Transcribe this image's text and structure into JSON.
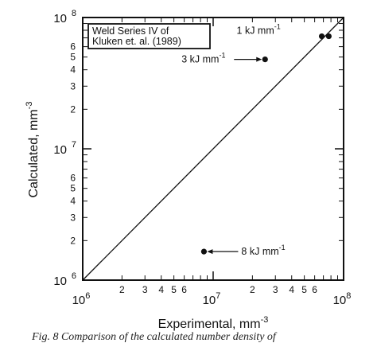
{
  "chart_data": {
    "type": "scatter",
    "title": "",
    "xlabel": "Experimental, mm",
    "xlabel_exp": "-3",
    "ylabel": "Calculated, mm",
    "ylabel_exp": "-3",
    "xscale": "log",
    "yscale": "log",
    "xlim": [
      1000000,
      100000000
    ],
    "ylim": [
      1000000,
      100000000
    ],
    "major_ticks": [
      {
        "value": 1000000,
        "base": "10",
        "exp": "6"
      },
      {
        "value": 10000000,
        "base": "10",
        "exp": "7"
      },
      {
        "value": 100000000,
        "base": "10",
        "exp": "8"
      }
    ],
    "x_minor_labels": [
      "2",
      "3",
      "4",
      "5",
      "6",
      "2",
      "3",
      "4",
      "5",
      "6"
    ],
    "y_minor_labels": [
      "2",
      "3",
      "4",
      "5",
      "6",
      "2",
      "3",
      "4",
      "5",
      "6"
    ],
    "legend_box": [
      "Weld Series IV of",
      "Kluken et. al. (1989)"
    ],
    "reference_line": {
      "x": [
        1000000,
        100000000
      ],
      "y": [
        1000000,
        100000000
      ]
    },
    "points": [
      {
        "x": 68000000,
        "y": 72000000
      },
      {
        "x": 77000000,
        "y": 72000000
      },
      {
        "x": 25000000,
        "y": 48000000
      },
      {
        "x": 8500000,
        "y": 1650000
      }
    ],
    "annotations": [
      {
        "text": "1 kJ mm",
        "exp": "-1",
        "point_index": 0
      },
      {
        "text": "3 kJ mm",
        "exp": "-1",
        "point_index": 2
      },
      {
        "text": "8 kJ mm",
        "exp": "-1",
        "point_index": 3
      }
    ],
    "grid": false
  },
  "caption": "Fig. 8   Comparison of the calculated number density of"
}
